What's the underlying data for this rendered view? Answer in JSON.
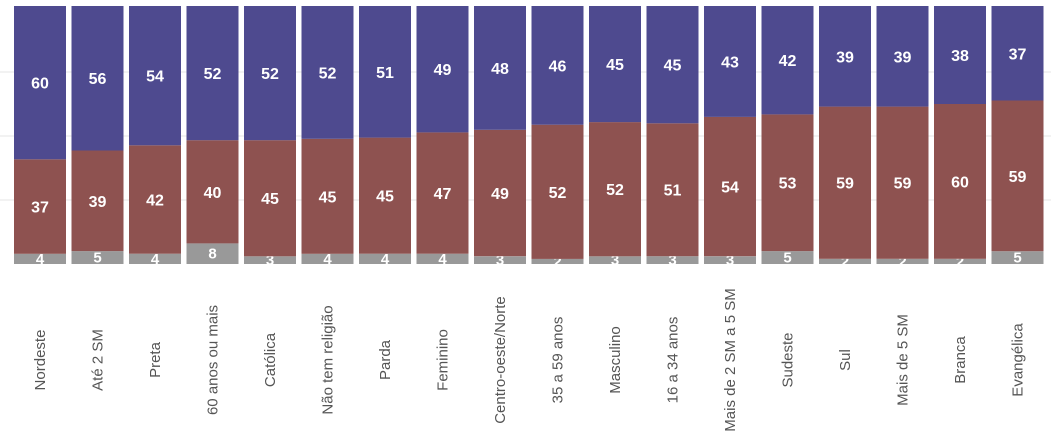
{
  "chart_data": {
    "type": "bar",
    "stacked": true,
    "orientation": "vertical",
    "categories": [
      "Nordeste",
      "Até 2 SM",
      "Preta",
      "60 anos ou mais",
      "Católica",
      "Não tem religião",
      "Parda",
      "Feminino",
      "Centro-oeste/Norte",
      "35 a 59 anos",
      "Masculino",
      "16 a 34 anos",
      "Mais de 2 SM a 5 SM",
      "Sudeste",
      "Sul",
      "Mais de 5 SM",
      "Branca",
      "Evangélica"
    ],
    "series": [
      {
        "values": [
          4,
          5,
          4,
          8,
          3,
          4,
          4,
          4,
          3,
          2,
          3,
          3,
          3,
          5,
          2,
          2,
          2,
          5
        ],
        "color": "#999999"
      },
      {
        "values": [
          37,
          39,
          42,
          40,
          45,
          45,
          45,
          47,
          49,
          52,
          52,
          51,
          54,
          53,
          59,
          59,
          60,
          59
        ],
        "color": "#8e5250"
      },
      {
        "values": [
          60,
          56,
          54,
          52,
          52,
          52,
          51,
          49,
          48,
          46,
          45,
          45,
          43,
          42,
          39,
          39,
          38,
          37
        ],
        "color": "#4e4a8f"
      }
    ],
    "grid": true,
    "gridColor": "#e6e6e6",
    "legend": "none"
  }
}
